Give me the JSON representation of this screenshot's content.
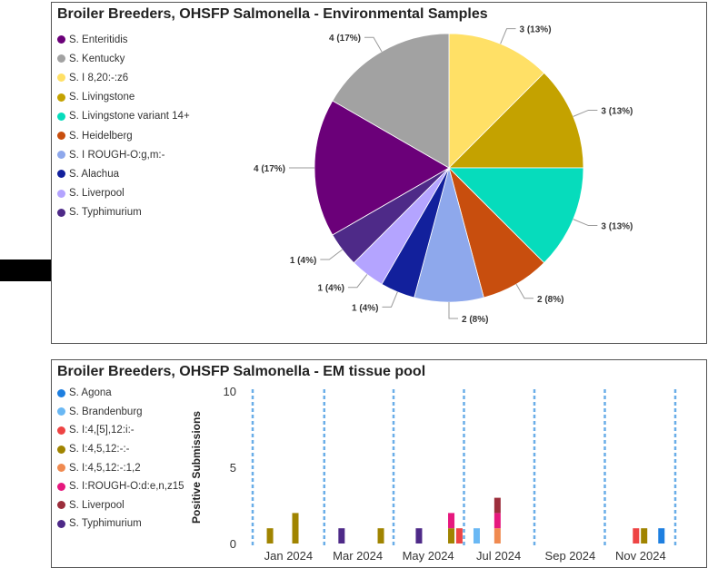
{
  "colors": {
    "arrow": "#000000",
    "gridline": "#6aaee8"
  },
  "chart_data": [
    {
      "type": "pie",
      "title": "Broiler Breeders, OHSFP Salmonella - Environmental Samples",
      "legend": "left",
      "series": [
        {
          "name": "S. Enteritidis",
          "value": 4,
          "label": "4 (17%)",
          "color": "#6b0079"
        },
        {
          "name": "S. Kentucky",
          "value": 4,
          "label": "4 (17%)",
          "color": "#a2a2a2"
        },
        {
          "name": "S. I 8,20:-:z6",
          "value": 3,
          "label": "3 (13%)",
          "color": "#ffe066"
        },
        {
          "name": "S. Livingstone",
          "value": 3,
          "label": "3 (13%)",
          "color": "#c4a200"
        },
        {
          "name": "S. Livingstone variant 14+",
          "value": 3,
          "label": "3 (13%)",
          "color": "#06dcbc"
        },
        {
          "name": "S. Heidelberg",
          "value": 2,
          "label": "2 (8%)",
          "color": "#c84e0e"
        },
        {
          "name": "S. I ROUGH-O:g,m:-",
          "value": 2,
          "label": "2 (8%)",
          "color": "#8ea8ec"
        },
        {
          "name": "S. Alachua",
          "value": 1,
          "label": "1 (4%)",
          "color": "#12209c"
        },
        {
          "name": "S. Liverpool",
          "value": 1,
          "label": "1 (4%)",
          "color": "#b4a4ff"
        },
        {
          "name": "S. Typhimurium",
          "value": 1,
          "label": "1 (4%)",
          "color": "#4e2a88"
        }
      ]
    },
    {
      "type": "bar",
      "stacked": true,
      "title": "Broiler Breeders, OHSFP Salmonella - EM tissue pool",
      "ylabel": "Positive Submissions",
      "ylim": [
        0,
        10
      ],
      "yticks": [
        "0",
        "5",
        "10"
      ],
      "xlim": [
        "2023-12-01",
        "2024-12-01"
      ],
      "xticks": [
        {
          "date": "2024-01-01",
          "label": "Jan 2024"
        },
        {
          "date": "2024-03-01",
          "label": "Mar 2024"
        },
        {
          "date": "2024-05-01",
          "label": "May 2024"
        },
        {
          "date": "2024-07-01",
          "label": "Jul 2024"
        },
        {
          "date": "2024-09-01",
          "label": "Sep 2024"
        },
        {
          "date": "2024-11-01",
          "label": "Nov 2024"
        }
      ],
      "gridlines_at": [
        "2023-12-01",
        "2024-02-01",
        "2024-04-01",
        "2024-06-01",
        "2024-08-01",
        "2024-10-01",
        "2024-12-01"
      ],
      "legend": "left",
      "series": [
        {
          "name": "S. Agona",
          "color": "#1e7fe0"
        },
        {
          "name": "S. Brandenburg",
          "color": "#6ab8f4"
        },
        {
          "name": "S. I:4,[5],12:i:-",
          "color": "#ee4444"
        },
        {
          "name": "S. I:4,5,12:-:-",
          "color": "#a08400"
        },
        {
          "name": "S. I:4,5,12:-:1,2",
          "color": "#f08a50"
        },
        {
          "name": "S. I:ROUGH-O:d:e,n,z15",
          "color": "#e6187e"
        },
        {
          "name": "S. Liverpool",
          "color": "#9c2e3c"
        },
        {
          "name": "S. Typhimurium",
          "color": "#4e2a88"
        }
      ],
      "bars": [
        {
          "date": "2023-12-16",
          "segments": [
            {
              "series": "S. I:4,5,12:-:-",
              "value": 1
            }
          ]
        },
        {
          "date": "2024-01-07",
          "segments": [
            {
              "series": "S. I:4,5,12:-:-",
              "value": 2
            }
          ]
        },
        {
          "date": "2024-02-16",
          "segments": [
            {
              "series": "S. Typhimurium",
              "value": 1
            }
          ]
        },
        {
          "date": "2024-03-21",
          "segments": [
            {
              "series": "S. I:4,5,12:-:-",
              "value": 1
            }
          ]
        },
        {
          "date": "2024-04-23",
          "segments": [
            {
              "series": "S. Typhimurium",
              "value": 1
            }
          ]
        },
        {
          "date": "2024-05-21",
          "segments": [
            {
              "series": "S. I:4,5,12:-:-",
              "value": 1
            },
            {
              "series": "S. I:ROUGH-O:d:e,n,z15",
              "value": 1
            }
          ]
        },
        {
          "date": "2024-05-28",
          "segments": [
            {
              "series": "S. I:4,[5],12:i:-",
              "value": 1
            }
          ]
        },
        {
          "date": "2024-06-12",
          "segments": [
            {
              "series": "S. Brandenburg",
              "value": 1
            }
          ]
        },
        {
          "date": "2024-06-30",
          "segments": [
            {
              "series": "S. I:4,5,12:-:1,2",
              "value": 1
            },
            {
              "series": "S. I:ROUGH-O:d:e,n,z15",
              "value": 1
            },
            {
              "series": "S. Liverpool",
              "value": 1
            }
          ]
        },
        {
          "date": "2024-10-28",
          "segments": [
            {
              "series": "S. I:4,[5],12:i:-",
              "value": 1
            }
          ]
        },
        {
          "date": "2024-11-04",
          "segments": [
            {
              "series": "S. I:4,5,12:-:-",
              "value": 1
            }
          ]
        },
        {
          "date": "2024-11-19",
          "segments": [
            {
              "series": "S. Agona",
              "value": 1
            }
          ]
        }
      ]
    }
  ]
}
